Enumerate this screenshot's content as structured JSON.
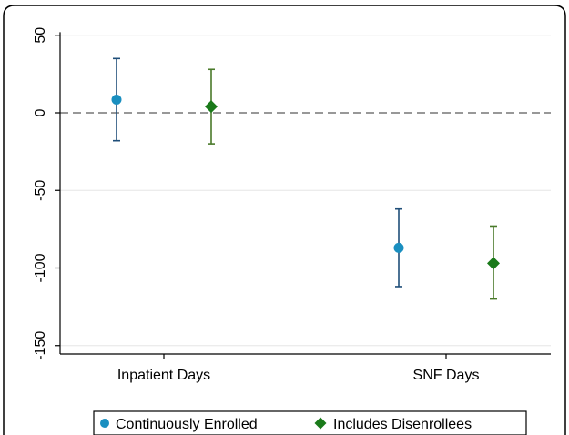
{
  "chart_data": {
    "type": "scatter",
    "subtype": "coefficient-plot-with-error-bars",
    "categories": [
      "Inpatient Days",
      "SNF Days"
    ],
    "y_ticks": [
      50,
      0,
      -50,
      -100,
      -150
    ],
    "y_tick_labels": [
      "50",
      "0",
      "-50",
      "-100",
      "-150"
    ],
    "ylim": [
      -155,
      52
    ],
    "grid": true,
    "reference_line": {
      "y": 0,
      "style": "dashed"
    },
    "legend_position": "bottom",
    "series": [
      {
        "name": "Continuously Enrolled",
        "marker": "circle",
        "marker_color": "#1a8fc0",
        "bar_color": "#1f4e79",
        "points": [
          {
            "category": "Inpatient Days",
            "value": 8.5,
            "lower": -18,
            "upper": 35
          },
          {
            "category": "SNF Days",
            "value": -87,
            "lower": -112,
            "upper": -62
          }
        ]
      },
      {
        "name": "Includes Disenrollees",
        "marker": "diamond",
        "marker_color": "#1a7a1a",
        "bar_color": "#4a7a2a",
        "points": [
          {
            "category": "Inpatient Days",
            "value": 4,
            "lower": -20,
            "upper": 28
          },
          {
            "category": "SNF Days",
            "value": -97,
            "lower": -120,
            "upper": -73
          }
        ]
      }
    ]
  }
}
